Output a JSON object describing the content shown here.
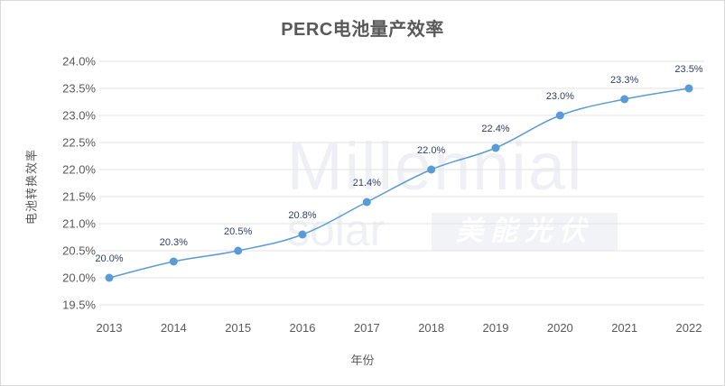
{
  "chart_data": {
    "type": "line",
    "title": "PERC电池量产效率",
    "xlabel": "年份",
    "ylabel": "电池转换效率",
    "categories": [
      "2013",
      "2014",
      "2015",
      "2016",
      "2017",
      "2018",
      "2019",
      "2020",
      "2021",
      "2022"
    ],
    "values": [
      20.0,
      20.3,
      20.5,
      20.8,
      21.4,
      22.0,
      22.4,
      23.0,
      23.3,
      23.5
    ],
    "data_labels": [
      "20.0%",
      "20.3%",
      "20.5%",
      "20.8%",
      "21.4%",
      "22.0%",
      "22.4%",
      "23.0%",
      "23.3%",
      "23.5%"
    ],
    "y_ticks": [
      "24.0%",
      "23.5%",
      "23.0%",
      "22.5%",
      "22.0%",
      "21.5%",
      "21.0%",
      "20.5%",
      "20.0%",
      "19.5%"
    ],
    "ylim": [
      19.5,
      24.0
    ],
    "grid": true,
    "legend": "none",
    "series_color": "#5b9bd5",
    "watermark": {
      "line1": "Millennial",
      "line2": "solar",
      "badge": "美能光伏"
    }
  }
}
